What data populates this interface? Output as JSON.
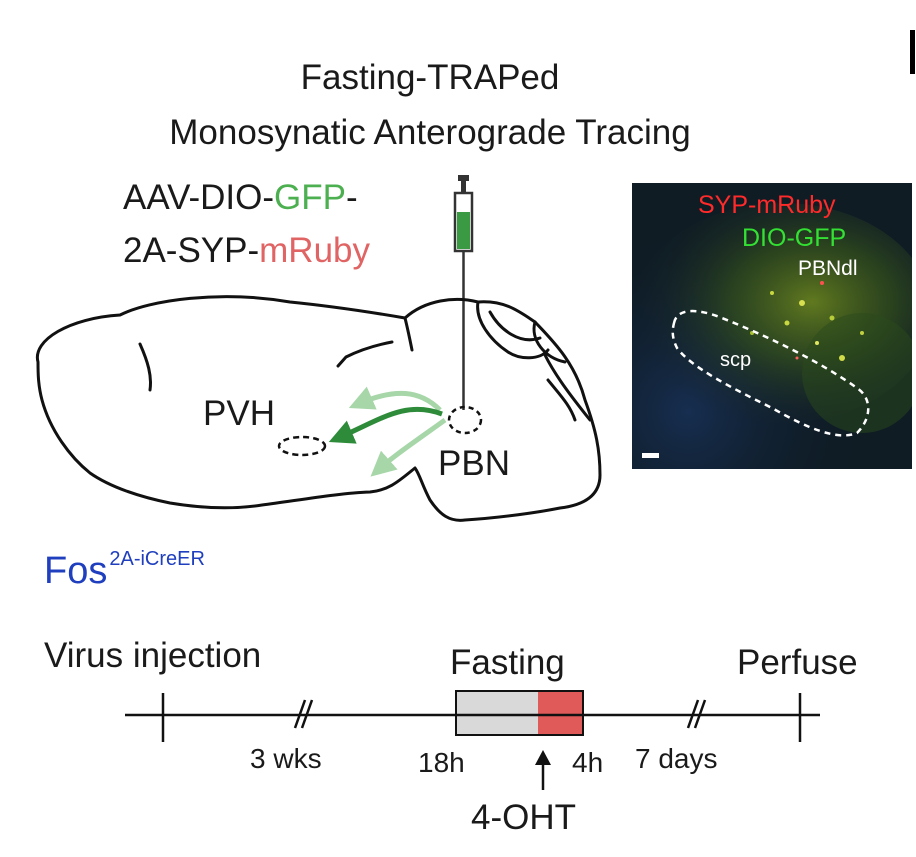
{
  "title": {
    "line1": "Fasting-TRAPed",
    "line2": "Monosynatic Anterograde Tracing"
  },
  "virus": {
    "line1_a": "AAV-DIO-",
    "line1_b": "GFP",
    "line1_c": "-",
    "line2_a": "2A-SYP-",
    "line2_b": "mRuby",
    "gfp_color": "#4caf50",
    "mruby_color": "#e06464"
  },
  "brain": {
    "pvh_label": "PVH",
    "pbn_label": "PBN",
    "arrow_color": "#2e8b3a"
  },
  "mouse_line": {
    "base": "Fos",
    "superscript": "2A-iCreER"
  },
  "micrograph": {
    "label_syp": "SYP-mRuby",
    "label_gfp": "DIO-GFP",
    "label_pbndl": "PBNdl",
    "label_scp": "scp",
    "syp_color": "#ff2a2a",
    "gfp_color": "#33e033"
  },
  "timeline": {
    "virus_injection": "Virus injection",
    "fasting": "Fasting",
    "perfuse": "Perfuse",
    "wks": "3 wks",
    "h18": "18h",
    "h4": "4h",
    "days": "7 days",
    "drug": "4-OHT",
    "fasting_color": "#d9d9d9",
    "treatment_color": "#e05a5a"
  }
}
